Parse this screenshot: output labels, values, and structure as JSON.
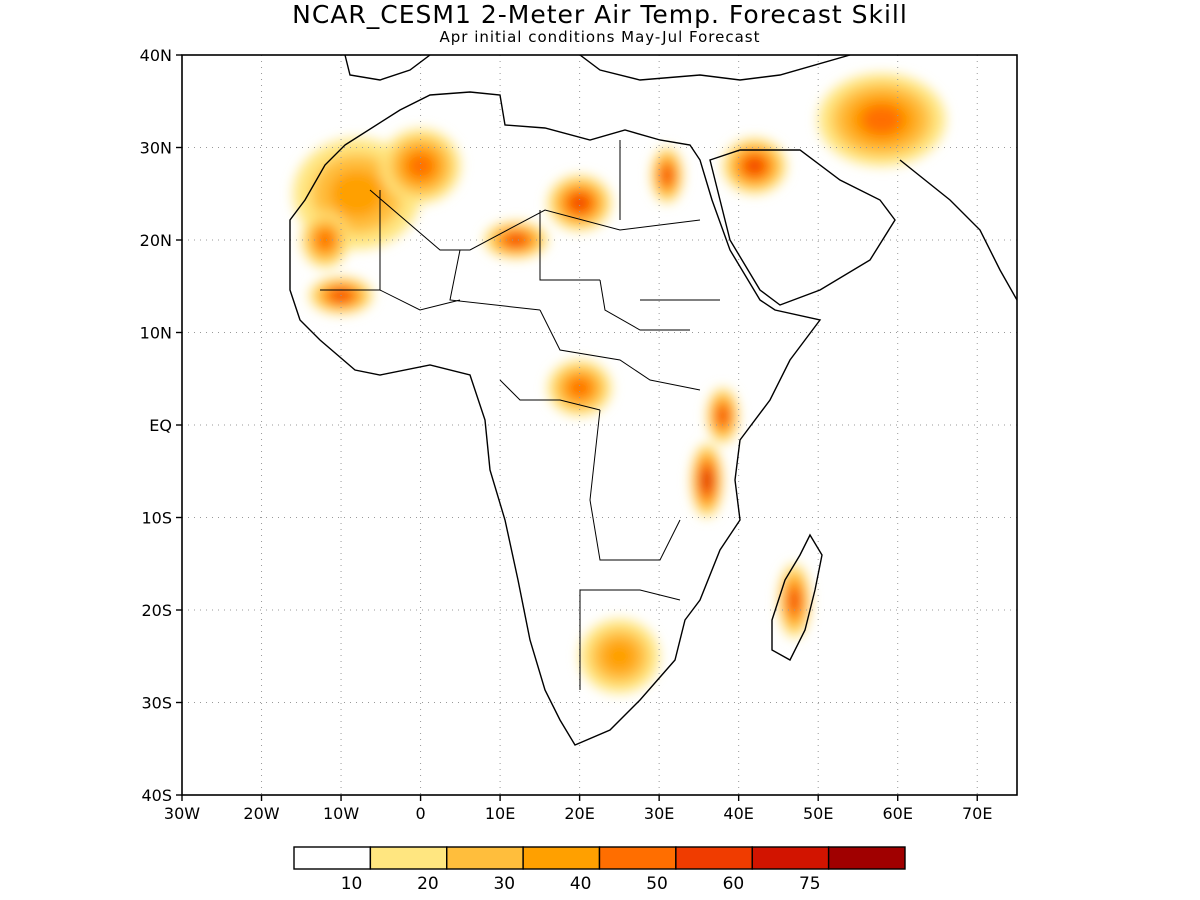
{
  "title": "NCAR_CESM1 2-Meter Air Temp. Forecast Skill",
  "subtitle": "Apr initial conditions  May-Jul Forecast",
  "map": {
    "lon_range": [
      -30,
      75
    ],
    "lat_range": [
      -40,
      40
    ],
    "lat_ticks": [
      {
        "value": 40,
        "label": "40N"
      },
      {
        "value": 30,
        "label": "30N"
      },
      {
        "value": 20,
        "label": "20N"
      },
      {
        "value": 10,
        "label": "10N"
      },
      {
        "value": 0,
        "label": "EQ"
      },
      {
        "value": -10,
        "label": "10S"
      },
      {
        "value": -20,
        "label": "20S"
      },
      {
        "value": -30,
        "label": "30S"
      },
      {
        "value": -40,
        "label": "40S"
      }
    ],
    "lon_ticks": [
      {
        "value": -30,
        "label": "30W"
      },
      {
        "value": -20,
        "label": "20W"
      },
      {
        "value": -10,
        "label": "10W"
      },
      {
        "value": 0,
        "label": "0"
      },
      {
        "value": 10,
        "label": "10E"
      },
      {
        "value": 20,
        "label": "20E"
      },
      {
        "value": 30,
        "label": "30E"
      },
      {
        "value": 40,
        "label": "40E"
      },
      {
        "value": 50,
        "label": "50E"
      },
      {
        "value": 60,
        "label": "60E"
      },
      {
        "value": 70,
        "label": "70E"
      }
    ],
    "grid": true,
    "land_outline_color": "#000000"
  },
  "colorbar": {
    "colors": [
      "#ffffff",
      "#ffe680",
      "#ffbe3c",
      "#ffa000",
      "#ff6e00",
      "#f03c00",
      "#d21400",
      "#a00000"
    ],
    "labels": [
      "10",
      "20",
      "30",
      "40",
      "50",
      "60",
      "75"
    ]
  },
  "skill_regions": [
    {
      "lon": -8,
      "lat": 25,
      "level": 3,
      "rx": 8,
      "ry": 6
    },
    {
      "lon": 0,
      "lat": 28,
      "level": 4,
      "rx": 5,
      "ry": 4
    },
    {
      "lon": 20,
      "lat": 24,
      "level": 5,
      "rx": 4,
      "ry": 3
    },
    {
      "lon": 12,
      "lat": 20,
      "level": 5,
      "rx": 4,
      "ry": 2
    },
    {
      "lon": 31,
      "lat": 27,
      "level": 5,
      "rx": 2,
      "ry": 3
    },
    {
      "lon": 42,
      "lat": 28,
      "level": 5,
      "rx": 4,
      "ry": 3
    },
    {
      "lon": 36,
      "lat": -6,
      "level": 6,
      "rx": 2,
      "ry": 4
    },
    {
      "lon": 38,
      "lat": 1,
      "level": 5,
      "rx": 2,
      "ry": 3
    },
    {
      "lon": 47,
      "lat": -19,
      "level": 5,
      "rx": 2,
      "ry": 4
    },
    {
      "lon": -10,
      "lat": 14,
      "level": 5,
      "rx": 4,
      "ry": 2
    },
    {
      "lon": -12,
      "lat": 20,
      "level": 4,
      "rx": 3,
      "ry": 3
    },
    {
      "lon": 20,
      "lat": 4,
      "level": 4,
      "rx": 4,
      "ry": 3
    },
    {
      "lon": 25,
      "lat": -25,
      "level": 3,
      "rx": 5,
      "ry": 4
    },
    {
      "lon": 58,
      "lat": 33,
      "level": 4,
      "rx": 8,
      "ry": 5
    }
  ]
}
